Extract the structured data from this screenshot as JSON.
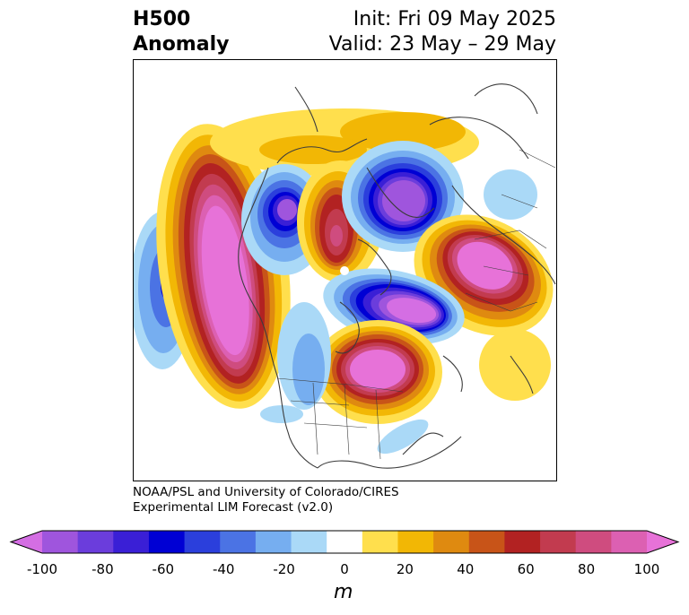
{
  "header": {
    "left_line1": "H500",
    "left_line2": "Anomaly",
    "right_line1": "Init: Fri 09 May 2025",
    "right_line2": "Valid: 23 May – 29 May"
  },
  "credit": {
    "line1": "NOAA/PSL and University of Colorado/CIRES",
    "line2": "Experimental LIM Forecast (v2.0)"
  },
  "colorbar": {
    "unit": "m",
    "tick_labels": [
      "-100",
      "-80",
      "-60",
      "-40",
      "-20",
      "0",
      "20",
      "40",
      "60",
      "80",
      "100"
    ],
    "colors": [
      "#d46ee3",
      "#9f55dd",
      "#6b3ddc",
      "#3a1fd6",
      "#0000d4",
      "#2b3fdc",
      "#4b73e4",
      "#76aef0",
      "#aad9f7",
      "#ffffff",
      "#ffdf4d",
      "#f2b705",
      "#df8a10",
      "#c85418",
      "#b22222",
      "#c23b4f",
      "#cf4c7f",
      "#dc60b2",
      "#e772d8"
    ]
  },
  "map": {
    "projection": "north polar stereographic",
    "color_levels_m": [
      -100,
      -90,
      -80,
      -70,
      -60,
      -50,
      -40,
      -30,
      -20,
      -10,
      10,
      20,
      30,
      40,
      50,
      60,
      70,
      80,
      90,
      100
    ]
  }
}
